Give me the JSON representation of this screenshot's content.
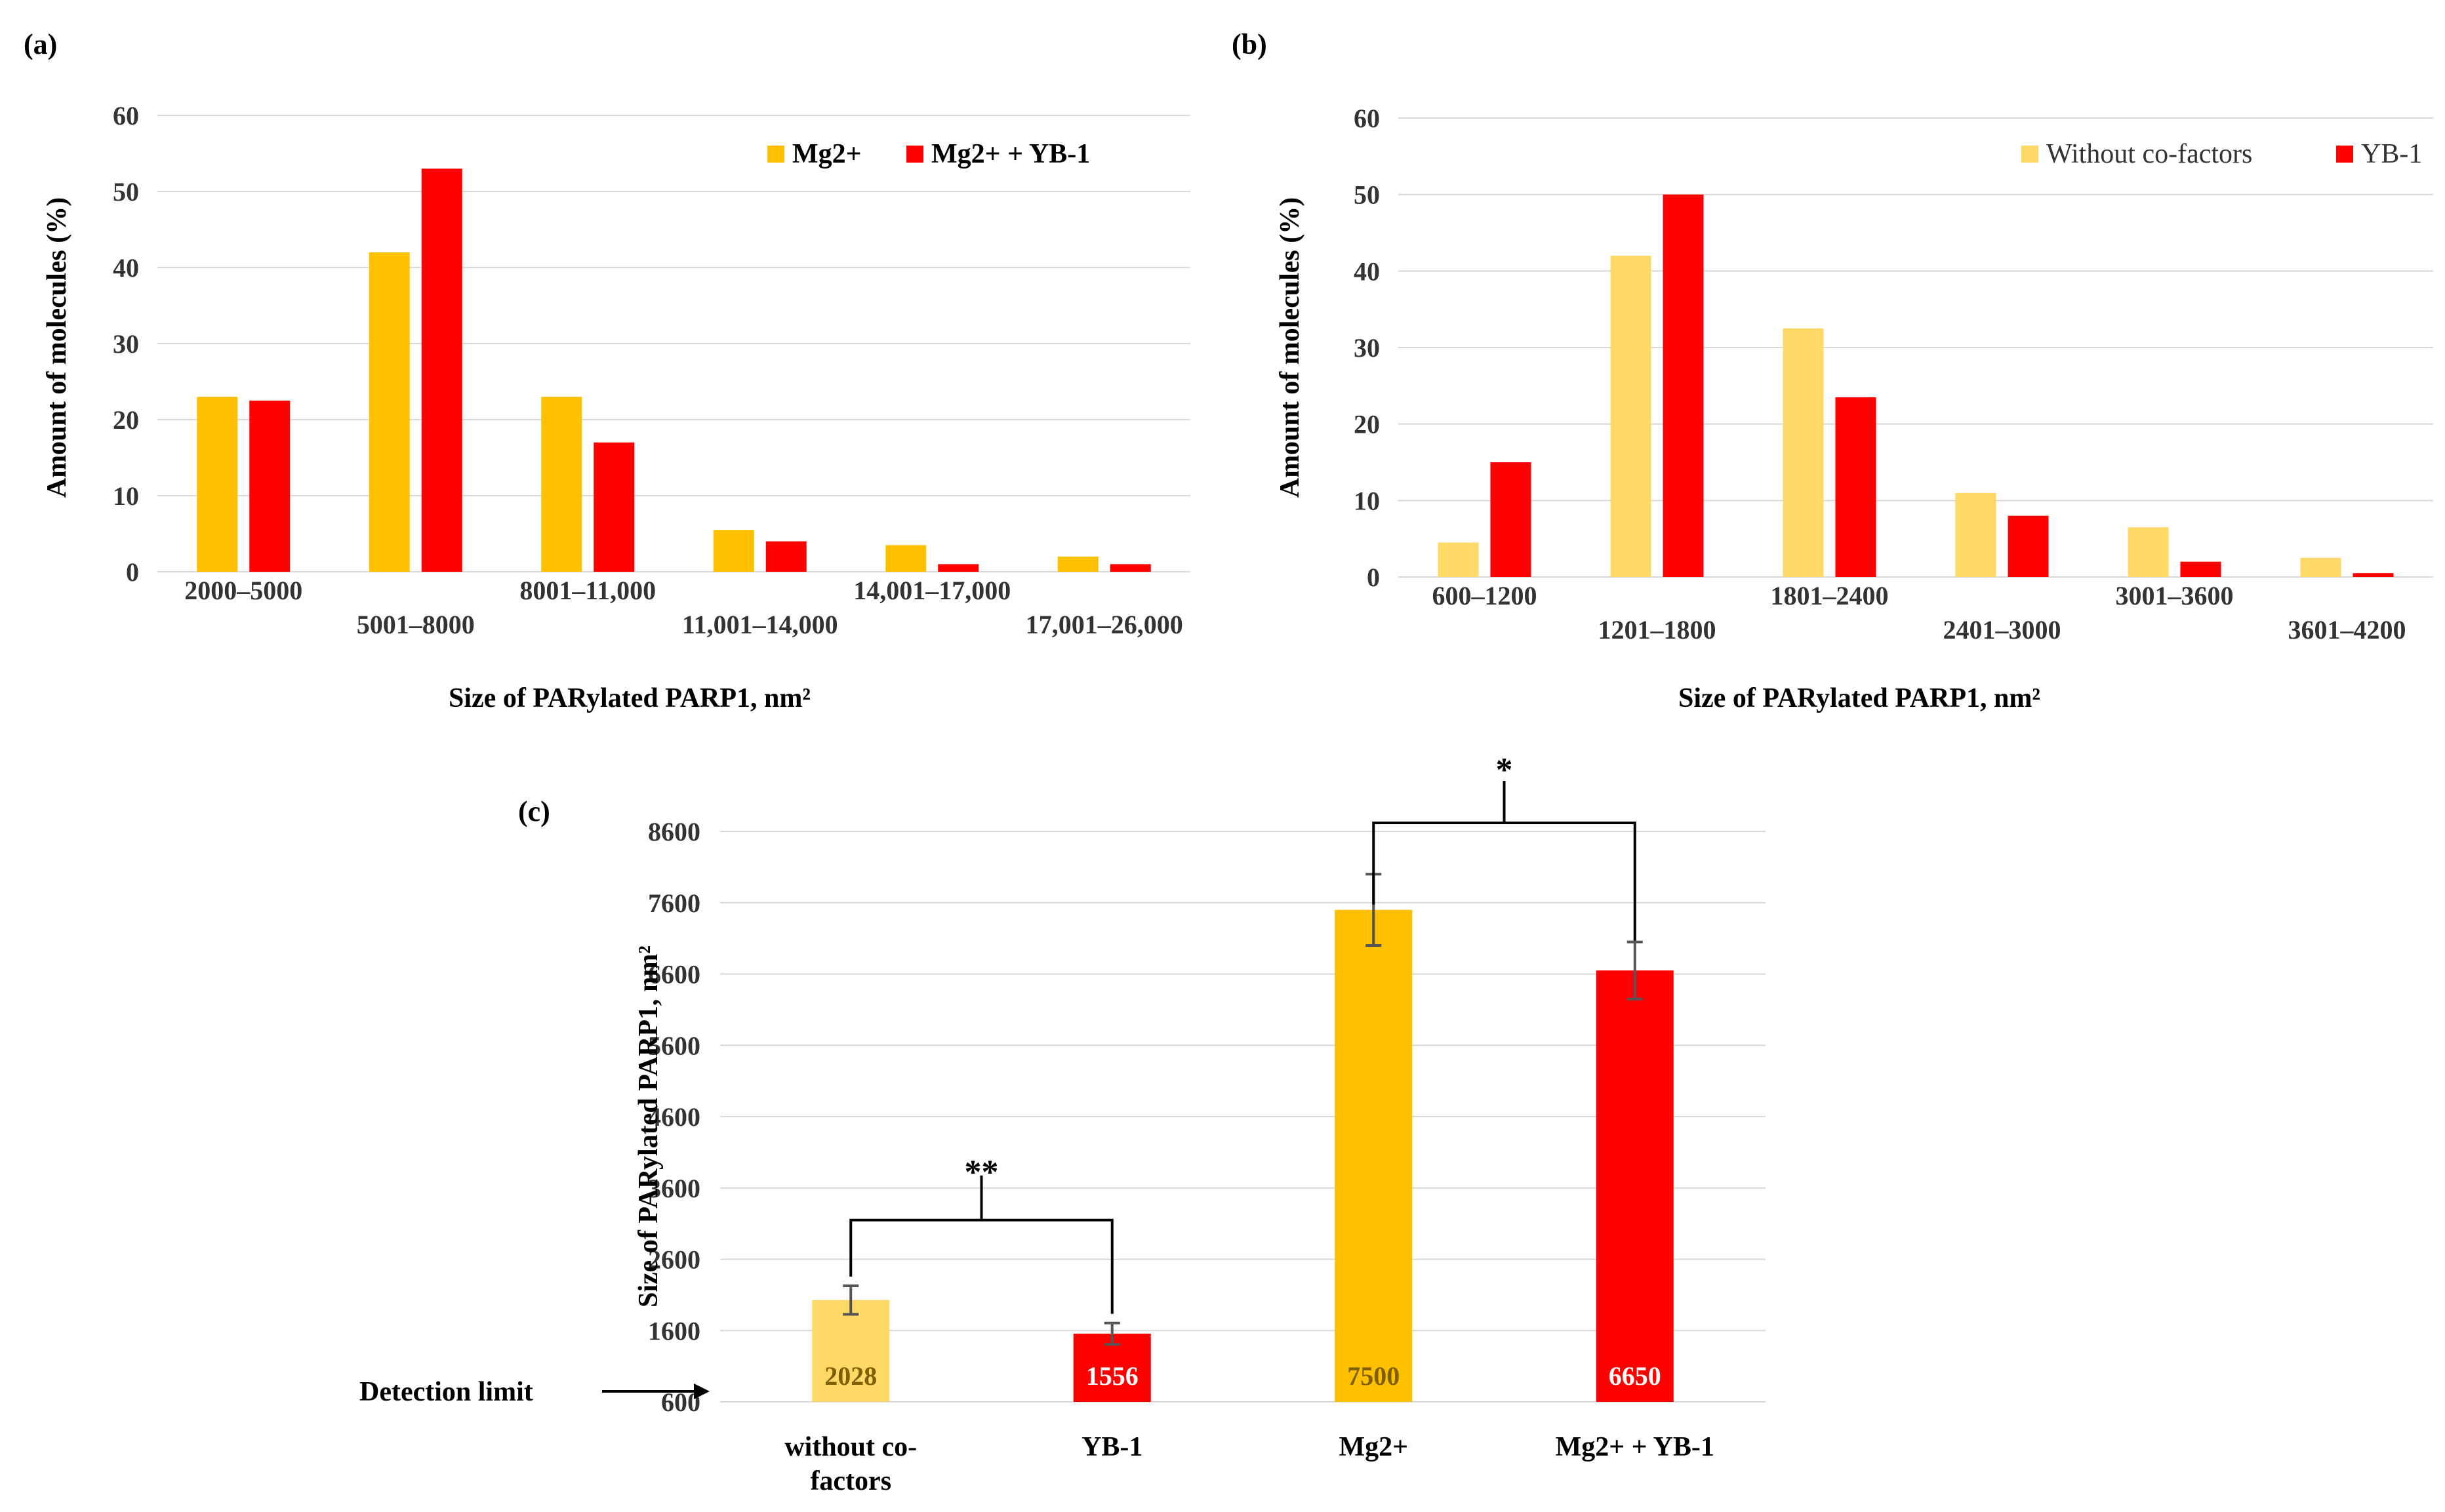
{
  "colors": {
    "orange": "#ffc000",
    "red": "#ff0000",
    "light_yellow": "#ffd966"
  },
  "chart_data": [
    {
      "panel": "(a)",
      "type": "bar",
      "title": "",
      "xlabel": "Size of PARylated PARP1, nm²",
      "ylabel": "Amount of molecules (%)",
      "ylim": [
        0,
        60
      ],
      "yticks": [
        0,
        10,
        20,
        30,
        40,
        50,
        60
      ],
      "grid": true,
      "legend": "top-right",
      "categories": [
        "2000–5000",
        "5001–8000",
        "8001–11,000",
        "11,001–14,000",
        "14,001–17,000",
        "17,001–26,000"
      ],
      "series": [
        {
          "name": "Mg2+",
          "color": "#ffc000",
          "values": [
            23,
            42,
            23,
            5.5,
            3.5,
            2
          ]
        },
        {
          "name": "Mg2+ + YB-1",
          "color": "#ff0000",
          "values": [
            22.5,
            53,
            17,
            4,
            1,
            1
          ]
        }
      ]
    },
    {
      "panel": "(b)",
      "type": "bar",
      "title": "",
      "xlabel": "Size of PARylated PARP1, nm²",
      "ylabel": "Amount of molecules (%)",
      "ylim": [
        0,
        60
      ],
      "yticks": [
        0,
        10,
        20,
        30,
        40,
        50,
        60
      ],
      "grid": true,
      "legend": "top-right",
      "categories": [
        "600–1200",
        "1201–1800",
        "1801–2400",
        "2401–3000",
        "3001–3600",
        "3601–4200"
      ],
      "series": [
        {
          "name": "Without co-factors",
          "color": "#ffd966",
          "values": [
            4.5,
            42,
            32.5,
            11,
            6.5,
            2.5
          ]
        },
        {
          "name": "YB-1",
          "color": "#ff0000",
          "values": [
            15,
            50,
            23.5,
            8,
            2,
            0.5
          ]
        }
      ]
    },
    {
      "panel": "(c)",
      "type": "bar",
      "title": "",
      "xlabel": "",
      "ylabel": "Size of PARylated PARP1, nm²",
      "ylim": [
        600,
        8600
      ],
      "yticks": [
        600,
        1600,
        2600,
        3600,
        4600,
        5600,
        6600,
        7600,
        8600
      ],
      "grid": true,
      "categories": [
        "without co-factors",
        "YB-1",
        "Mg2+",
        "Mg2+ + YB-1"
      ],
      "values": [
        2028,
        1556,
        7500,
        6650
      ],
      "errors": [
        200,
        150,
        500,
        400
      ],
      "colors": [
        "#ffd966",
        "#ff0000",
        "#ffc000",
        "#ff0000"
      ],
      "data_labels": [
        "2028",
        "1556",
        "7500",
        "6650"
      ],
      "annotations": {
        "detection_limit": "Detection limit",
        "significance": [
          {
            "between": [
              "without co-factors",
              "YB-1"
            ],
            "label": "**"
          },
          {
            "between": [
              "Mg2+",
              "Mg2+ + YB-1"
            ],
            "label": "*"
          }
        ]
      }
    }
  ]
}
